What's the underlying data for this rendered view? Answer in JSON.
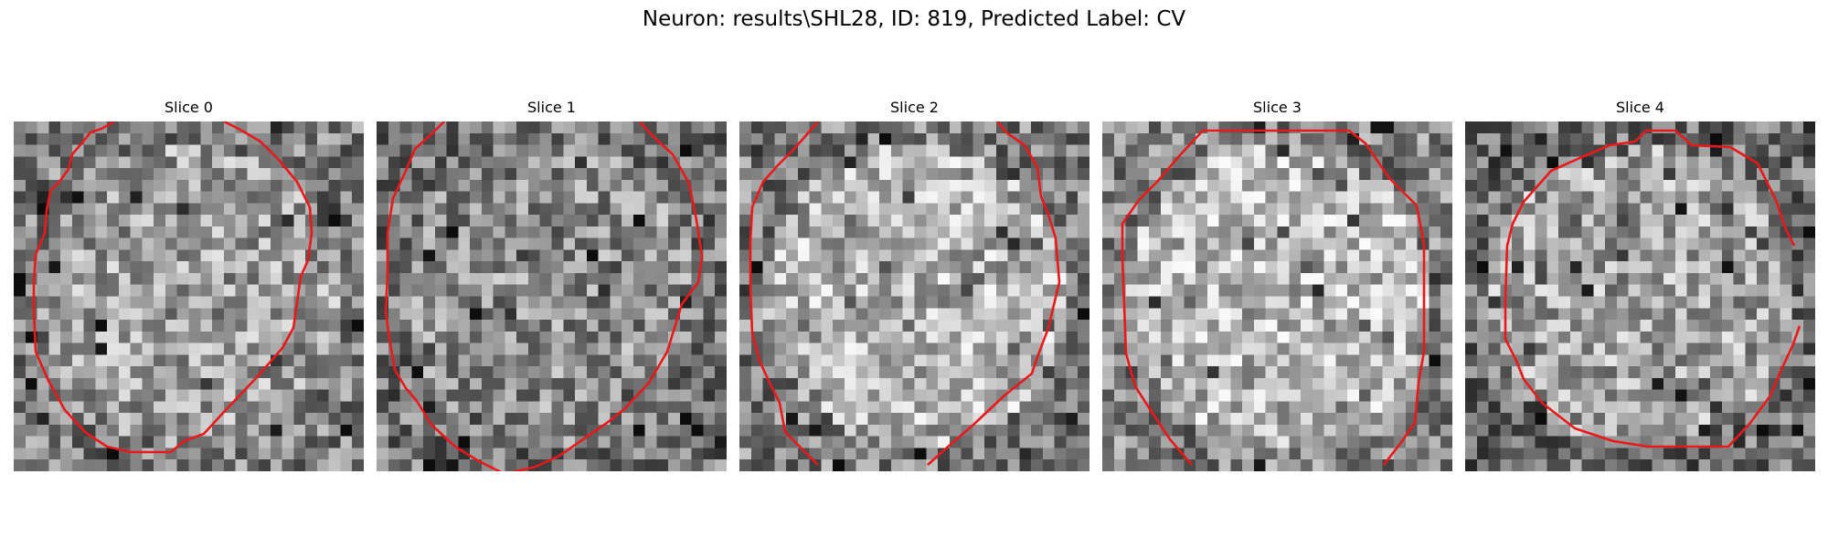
{
  "figure": {
    "title": "Neuron: results\\SHL28, ID: 819, Predicted Label: CV"
  },
  "colors": {
    "contour": "#e8191a",
    "background": "#ffffff",
    "text": "#000000",
    "colormap": "gray"
  },
  "slices": [
    {
      "label": "Slice 0",
      "seed": 11,
      "center_brightness": 0.62,
      "edge_brightness": 0.5
    },
    {
      "label": "Slice 1",
      "seed": 23,
      "center_brightness": 0.56,
      "edge_brightness": 0.46
    },
    {
      "label": "Slice 2",
      "seed": 37,
      "center_brightness": 0.7,
      "edge_brightness": 0.5
    },
    {
      "label": "Slice 3",
      "seed": 41,
      "center_brightness": 0.72,
      "edge_brightness": 0.52
    },
    {
      "label": "Slice 4",
      "seed": 53,
      "center_brightness": 0.64,
      "edge_brightness": 0.44
    }
  ]
}
